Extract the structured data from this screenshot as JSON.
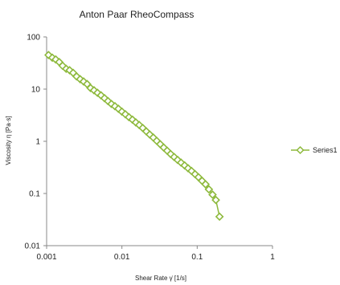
{
  "chart_data": {
    "type": "scatter",
    "title": "Anton Paar RheoCompass",
    "xlabel": "Shear Rate γ̇ [1/s]",
    "ylabel": "Viscosity η [Pa·s]",
    "x_scale": "log",
    "y_scale": "log",
    "xlim": [
      0.001,
      1
    ],
    "ylim": [
      0.01,
      100
    ],
    "x_ticks": [
      "0.001",
      "0.01",
      "0.1",
      "1"
    ],
    "y_ticks": [
      "100",
      "10",
      "1",
      "0.1",
      "0.01"
    ],
    "grid": false,
    "legend_position": "right",
    "series": [
      {
        "name": "Series1",
        "color": "#8db93c",
        "marker": "diamond",
        "line": true,
        "x": [
          0.00106,
          0.00119,
          0.00132,
          0.00147,
          0.00163,
          0.00182,
          0.00202,
          0.00225,
          0.0025,
          0.00279,
          0.0031,
          0.00345,
          0.00383,
          0.00426,
          0.00474,
          0.00528,
          0.00587,
          0.00653,
          0.00726,
          0.00808,
          0.00899,
          0.01,
          0.0111,
          0.0124,
          0.0138,
          0.0153,
          0.017,
          0.0189,
          0.0211,
          0.0234,
          0.0261,
          0.029,
          0.0323,
          0.0359,
          0.0399,
          0.0444,
          0.0494,
          0.0549,
          0.0611,
          0.068,
          0.0756,
          0.0841,
          0.0936,
          0.104,
          0.116,
          0.129,
          0.143,
          0.16,
          0.177,
          0.198
        ],
        "y": [
          45.0,
          40.0,
          37.0,
          33.0,
          28.0,
          24.5,
          23.0,
          20.5,
          17.5,
          15.5,
          14.0,
          12.5,
          10.5,
          9.5,
          8.5,
          7.6,
          6.7,
          5.9,
          5.2,
          4.7,
          4.2,
          3.7,
          3.3,
          2.9,
          2.6,
          2.3,
          2.05,
          1.8,
          1.55,
          1.35,
          1.18,
          1.02,
          0.88,
          0.76,
          0.66,
          0.57,
          0.5,
          0.44,
          0.39,
          0.345,
          0.305,
          0.27,
          0.235,
          0.205,
          0.175,
          0.15,
          0.12,
          0.095,
          0.075,
          0.036
        ]
      }
    ]
  }
}
